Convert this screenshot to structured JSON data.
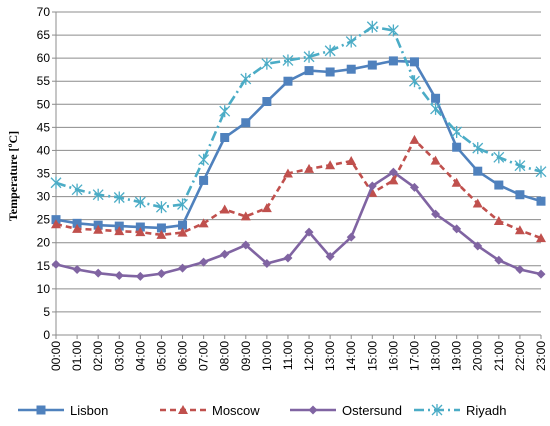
{
  "chart_data": {
    "type": "line",
    "title": "",
    "xlabel": "",
    "ylabel": "Temperature [ºC]",
    "ylim": [
      0,
      70
    ],
    "yticks": [
      0,
      5,
      10,
      15,
      20,
      25,
      30,
      35,
      40,
      45,
      50,
      55,
      60,
      65,
      70
    ],
    "grid": true,
    "legend_position": "bottom",
    "categories": [
      "00:00",
      "01:00",
      "02:00",
      "03:00",
      "04:00",
      "05:00",
      "06:00",
      "07:00",
      "08:00",
      "09:00",
      "10:00",
      "11:00",
      "12:00",
      "13:00",
      "14:00",
      "15:00",
      "16:00",
      "17:00",
      "18:00",
      "19:00",
      "20:00",
      "21:00",
      "22:00",
      "23:00"
    ],
    "series": [
      {
        "name": "Lisbon",
        "color": "#4F81BD",
        "line": "solid",
        "marker": "square",
        "values": [
          25,
          24.2,
          23.8,
          23.6,
          23.4,
          23.2,
          23.8,
          33.5,
          42.8,
          46,
          50.6,
          55,
          57.3,
          57,
          57.6,
          58.5,
          59.4,
          59.2,
          51.3,
          40.7,
          35.5,
          32.5,
          30.4,
          29
        ]
      },
      {
        "name": "Moscow",
        "color": "#C0504D",
        "line": "dashed",
        "marker": "triangle",
        "values": [
          24,
          23,
          22.8,
          22.5,
          22.3,
          21.7,
          22.2,
          24.2,
          27.2,
          25.7,
          27.5,
          35,
          36,
          36.8,
          37.7,
          30.8,
          33.5,
          42.3,
          37.8,
          33,
          28.5,
          24.7,
          22.7,
          21
        ]
      },
      {
        "name": "Ostersund",
        "color": "#8064A2",
        "line": "solid",
        "marker": "diamond",
        "values": [
          15.3,
          14.2,
          13.4,
          12.9,
          12.7,
          13.3,
          14.5,
          15.8,
          17.5,
          19.5,
          15.5,
          16.7,
          22.3,
          17,
          21.2,
          32.3,
          35.3,
          32,
          26.2,
          23,
          19.3,
          16.2,
          14.2,
          13.2
        ]
      },
      {
        "name": "Riyadh",
        "color": "#4BACC6",
        "line": "dashdot",
        "marker": "asterisk",
        "values": [
          33,
          31.5,
          30.4,
          29.8,
          28.8,
          27.7,
          28.3,
          38,
          48.5,
          55.5,
          58.8,
          59.5,
          60.3,
          61.6,
          63.6,
          66.8,
          66,
          55,
          49,
          44,
          40.5,
          38.5,
          36.7,
          35.4
        ]
      }
    ]
  }
}
